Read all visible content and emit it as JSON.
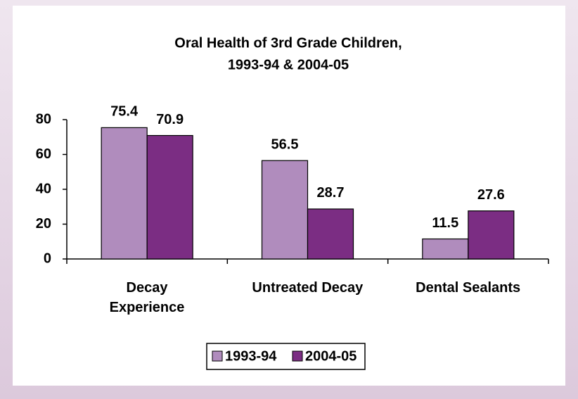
{
  "chart_data": {
    "type": "bar",
    "title": [
      "Oral Health of 3rd Grade Children,",
      "1993-94 & 2004-05"
    ],
    "categories": [
      "Decay\nExperience",
      "Untreated Decay",
      "Dental Sealants"
    ],
    "series": [
      {
        "name": "1993-94",
        "color": "#b08cbd",
        "values": [
          75.4,
          56.5,
          11.5
        ]
      },
      {
        "name": "2004-05",
        "color": "#7b2d83",
        "values": [
          70.9,
          28.7,
          27.6
        ]
      }
    ],
    "ylim": [
      0,
      80
    ],
    "yticks": [
      0,
      20,
      40,
      60,
      80
    ],
    "grid": false,
    "legend": "bottom"
  }
}
